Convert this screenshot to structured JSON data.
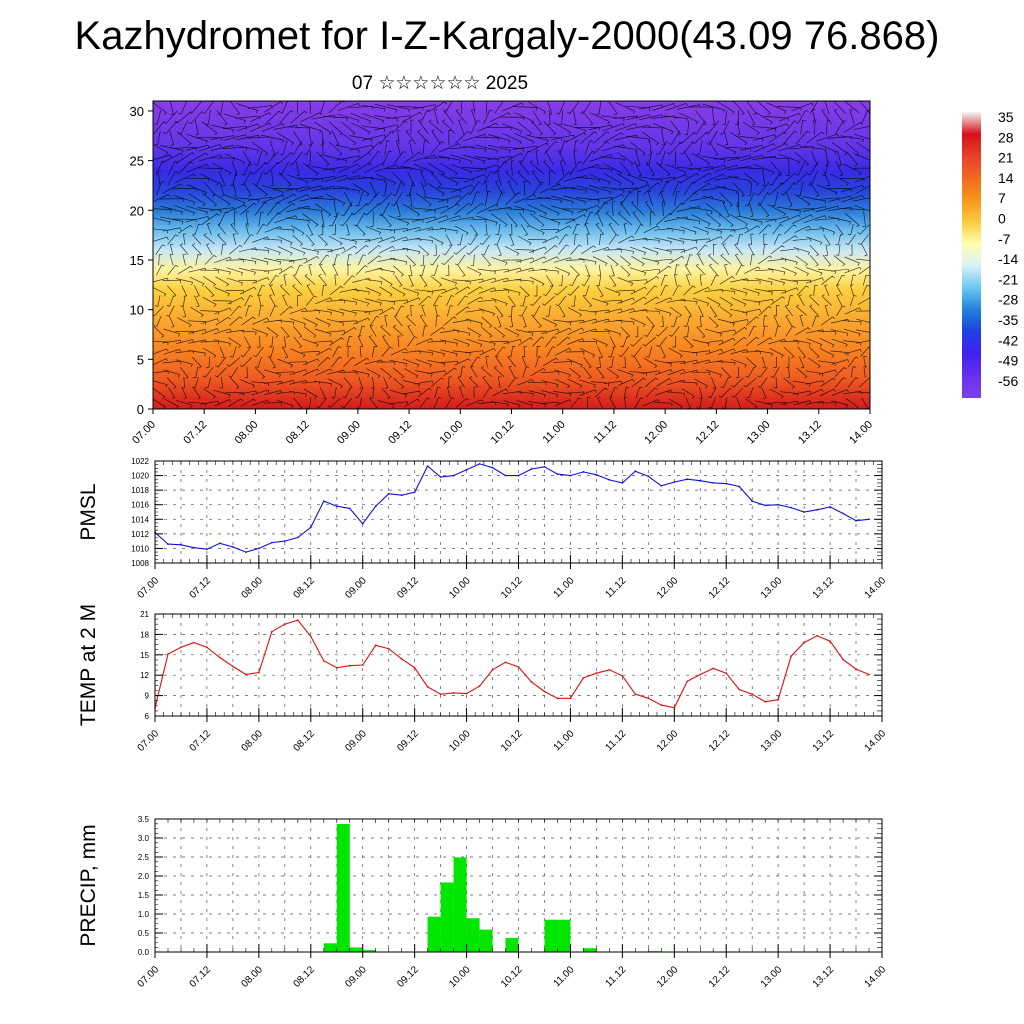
{
  "title": "Kazhydromet for I-Z-Kargaly-2000(43.09 76.868)",
  "subtitle": "07 ☆☆☆☆☆☆ 2025",
  "x_tick_labels": [
    "07.00",
    "07.12",
    "08.00",
    "08.12",
    "09.00",
    "09.12",
    "10.00",
    "10.12",
    "11.00",
    "11.12",
    "12.00",
    "12.12",
    "13.00",
    "13.12",
    "14.00"
  ],
  "chart_data": [
    {
      "type": "heatmap",
      "name": "upper-air-temperature",
      "y_ticks": [
        0,
        5,
        10,
        15,
        20,
        25,
        30
      ],
      "ylim": [
        0,
        31
      ],
      "colorbar": {
        "labels": [
          "35",
          "28",
          "21",
          "14",
          "7",
          "0",
          "-7",
          "-14",
          "-21",
          "-28",
          "-35",
          "-42",
          "-49",
          "-56"
        ],
        "colors": [
          "#f4f4f4",
          "#d8101a",
          "#e8402a",
          "#f06a20",
          "#f8961e",
          "#fccc40",
          "#ffffb0",
          "#d8f0f8",
          "#6ac8f0",
          "#2080d8",
          "#2040e0",
          "#4020f0",
          "#6830f0",
          "#8040e8"
        ]
      },
      "layers": [
        {
          "top": 0,
          "color": "#d21a1e"
        },
        {
          "top": 3,
          "color": "#ee5a22"
        },
        {
          "top": 6,
          "color": "#f88422"
        },
        {
          "top": 9,
          "color": "#faa830"
        },
        {
          "top": 12,
          "color": "#fcd040"
        },
        {
          "top": 14,
          "color": "#fff3a0"
        },
        {
          "top": 16,
          "color": "#c8e8f4"
        },
        {
          "top": 18,
          "color": "#68bcec"
        },
        {
          "top": 20,
          "color": "#2a7ad8"
        },
        {
          "top": 22,
          "color": "#2842dc"
        },
        {
          "top": 24,
          "color": "#3a2ae6"
        },
        {
          "top": 26.5,
          "color": "#6236e8"
        },
        {
          "top": 31,
          "color": "#8a3ce8"
        }
      ]
    },
    {
      "type": "line",
      "ylabel": "PMSL",
      "ylim": [
        1008,
        1022
      ],
      "y_ticks": [
        1008,
        1010,
        1012,
        1014,
        1016,
        1018,
        1020,
        1022
      ],
      "color": "#1010e0",
      "x": [
        0,
        3,
        6,
        9,
        12,
        15,
        18,
        21,
        24,
        27,
        30,
        33,
        36,
        39,
        42,
        45,
        48,
        51,
        54,
        57,
        60,
        63,
        66,
        69,
        72,
        75,
        78,
        81,
        84,
        87,
        90,
        93,
        96,
        99,
        102,
        105,
        108,
        111,
        114,
        117,
        120,
        123,
        126,
        129,
        132,
        135,
        138,
        141,
        144,
        147,
        150,
        153,
        156,
        159,
        162,
        165
      ],
      "values": [
        1012.2,
        1010.6,
        1010.5,
        1010.1,
        1009.9,
        1010.7,
        1010.2,
        1009.5,
        1010.0,
        1010.8,
        1011.0,
        1011.5,
        1012.9,
        1016.5,
        1015.8,
        1015.5,
        1013.4,
        1015.8,
        1017.5,
        1017.3,
        1017.7,
        1021.3,
        1019.8,
        1020.0,
        1020.8,
        1021.6,
        1021.1,
        1020.0,
        1020.0,
        1020.9,
        1021.2,
        1020.2,
        1020.0,
        1020.5,
        1020.1,
        1019.4,
        1019.0,
        1020.6,
        1019.9,
        1018.6,
        1019.1,
        1019.5,
        1019.3,
        1019.0,
        1018.9,
        1018.5,
        1016.5,
        1015.9,
        1016.0,
        1015.6,
        1015.0,
        1015.3,
        1015.7,
        1014.8,
        1013.8,
        1014.0
      ]
    },
    {
      "type": "line",
      "ylabel": "TEMP at 2 M",
      "ylim": [
        6,
        21
      ],
      "y_ticks": [
        6,
        9,
        12,
        15,
        18,
        21
      ],
      "color": "#dd1010",
      "x": [
        0,
        3,
        6,
        9,
        12,
        15,
        18,
        21,
        24,
        27,
        30,
        33,
        36,
        39,
        42,
        45,
        48,
        51,
        54,
        57,
        60,
        63,
        66,
        69,
        72,
        75,
        78,
        81,
        84,
        87,
        90,
        93,
        96,
        99,
        102,
        105,
        108,
        111,
        114,
        117,
        120,
        123,
        126,
        129,
        132,
        135,
        138,
        141,
        144,
        147,
        150,
        153,
        156,
        159,
        162,
        165
      ],
      "values": [
        7.2,
        15.1,
        16.1,
        16.8,
        16.1,
        14.6,
        13.3,
        12.1,
        12.4,
        18.4,
        19.5,
        20.1,
        17.7,
        14.1,
        13.1,
        13.4,
        13.5,
        16.4,
        15.9,
        14.4,
        13.1,
        10.3,
        9.2,
        9.4,
        9.3,
        10.4,
        12.8,
        13.9,
        13.2,
        11.0,
        9.6,
        8.6,
        8.6,
        11.6,
        12.3,
        12.8,
        11.9,
        9.2,
        8.6,
        7.6,
        7.2,
        11.1,
        12.1,
        13.0,
        12.3,
        9.9,
        9.2,
        8.1,
        8.4,
        14.8,
        16.8,
        17.8,
        17.0,
        14.3,
        12.9,
        12.1
      ]
    },
    {
      "type": "bar",
      "ylabel": "PRECIP, mm",
      "ylim": [
        0,
        3.5
      ],
      "y_ticks": [
        "0.0",
        "0.5",
        "1.0",
        "1.5",
        "2.0",
        "2.5",
        "3.0",
        "3.5"
      ],
      "color": "#00e600",
      "bar_width": 3,
      "x": [
        39,
        42,
        45,
        48,
        63,
        66,
        69,
        72,
        75,
        81,
        90,
        93,
        99,
        114
      ],
      "values": [
        0.23,
        3.37,
        0.12,
        0.05,
        0.93,
        1.83,
        2.49,
        0.89,
        0.59,
        0.37,
        0.85,
        0.85,
        0.1,
        0.02
      ]
    }
  ]
}
